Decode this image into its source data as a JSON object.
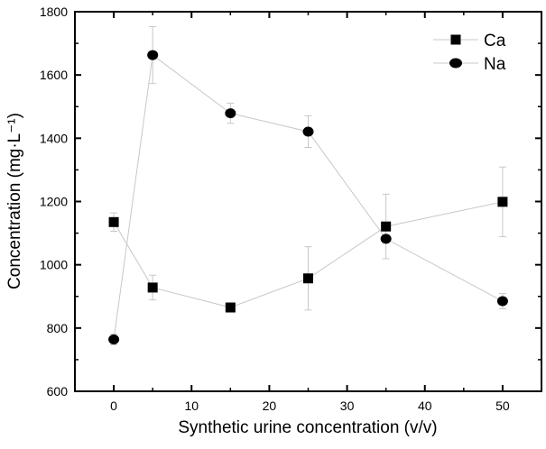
{
  "chart_data": {
    "type": "scatter",
    "title": "",
    "xlabel": "Synthetic urine concentration (v/v)",
    "ylabel": "Concentration (mg·L⁻¹)",
    "xlim": [
      -5,
      55
    ],
    "ylim": [
      600,
      1800
    ],
    "xticks": [
      0,
      10,
      20,
      30,
      40,
      50
    ],
    "yticks": [
      600,
      800,
      1000,
      1200,
      1400,
      1600,
      1800
    ],
    "grid": false,
    "legend_position": "top-right",
    "x": [
      0,
      5,
      15,
      25,
      35,
      50
    ],
    "series": [
      {
        "name": "Ca",
        "marker": "square",
        "values": [
          1135,
          928,
          865,
          957,
          1121,
          1199
        ],
        "errors": [
          29,
          39,
          10,
          100,
          102,
          110
        ]
      },
      {
        "name": "Na",
        "marker": "circle",
        "values": [
          764,
          1663,
          1479,
          1421,
          1082,
          885
        ],
        "errors": [
          17,
          90,
          32,
          50,
          12,
          24
        ]
      }
    ],
    "line_color": "#c8c8c8",
    "marker_color": "#000000"
  }
}
